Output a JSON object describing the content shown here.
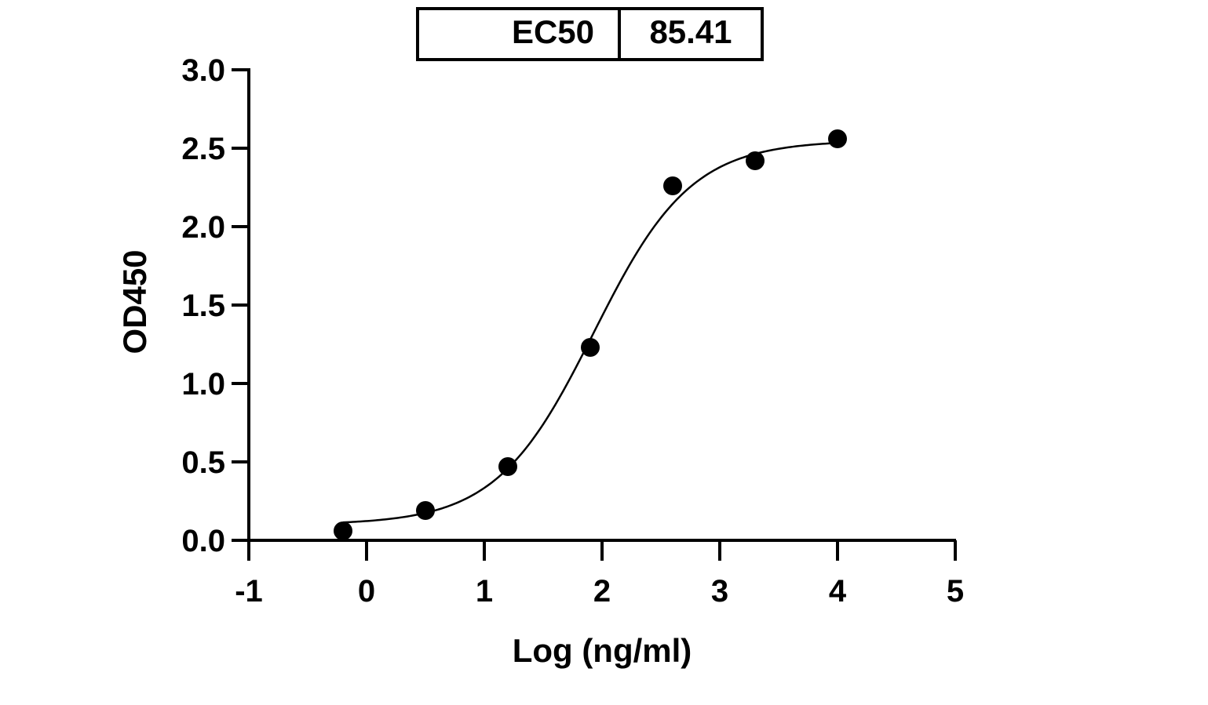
{
  "chart_data": {
    "type": "scatter",
    "xlabel": "Log (ng/ml)",
    "ylabel": "OD450",
    "xlim": [
      -1,
      5
    ],
    "ylim": [
      0,
      3
    ],
    "x_ticks": [
      "-1",
      "0",
      "1",
      "2",
      "3",
      "4",
      "5"
    ],
    "y_ticks": [
      "0.0",
      "0.5",
      "1.0",
      "1.5",
      "2.0",
      "2.5",
      "3.0"
    ],
    "grid": false,
    "series": [
      {
        "points": [
          {
            "x": -0.2,
            "y": 0.06
          },
          {
            "x": 0.5,
            "y": 0.19
          },
          {
            "x": 1.2,
            "y": 0.47
          },
          {
            "x": 1.9,
            "y": 1.23
          },
          {
            "x": 2.6,
            "y": 2.26
          },
          {
            "x": 3.3,
            "y": 2.42
          },
          {
            "x": 4.0,
            "y": 2.56
          }
        ],
        "fit": {
          "model": "four-parameter logistic",
          "bottom": 0.1,
          "top": 2.55,
          "log_ec50": 1.93,
          "hill_slope": 1.05,
          "x_range": [
            -0.2,
            4.0
          ]
        }
      }
    ],
    "color": "#000000",
    "legend_table": {
      "label": "EC50",
      "value": "85.41"
    }
  }
}
